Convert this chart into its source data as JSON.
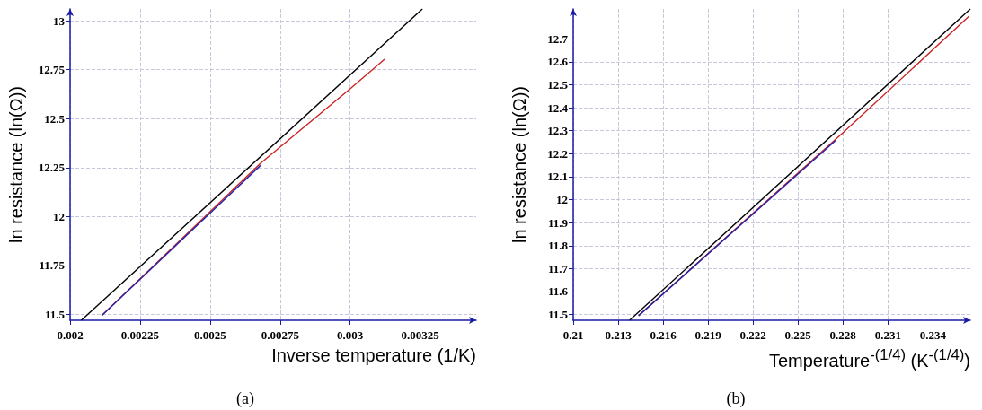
{
  "chart_data": [
    {
      "type": "line",
      "xlabel": "Inverse temperature (1/K)",
      "ylabel": "ln resistance (ln(Ω))",
      "annotations": [
        "(a)"
      ],
      "xlim": [
        0.002,
        0.00345
      ],
      "xticks": [
        0.002,
        0.00225,
        0.0025,
        0.00275,
        0.003,
        0.00325
      ],
      "ylim": [
        11.47,
        13.06
      ],
      "yticks": [
        11.5,
        11.75,
        12,
        12.25,
        12.5,
        12.75,
        13
      ],
      "grid": true,
      "marker": "none",
      "line_style": "solid",
      "series": [
        {
          "color": "#000000",
          "x": [
            0.00204,
            0.003258
          ],
          "values": [
            11.47,
            13.06
          ]
        },
        {
          "color": "#cc2222",
          "x": [
            0.002113,
            0.00268,
            0.003,
            0.003123
          ],
          "values": [
            11.494,
            12.272,
            12.652,
            12.803
          ]
        },
        {
          "color": "#2222aa",
          "x": [
            0.002113,
            0.00268
          ],
          "values": [
            11.494,
            12.261
          ]
        }
      ]
    },
    {
      "type": "line",
      "xlabel": "Temperature$^{-(1/4)}$ (K$^{-(1/4)}$)",
      "ylabel": "ln resistance (ln(Ω))",
      "annotations": [
        "(b)"
      ],
      "xlim": [
        0.21,
        0.2365
      ],
      "xticks": [
        0.21,
        0.213,
        0.216,
        0.219,
        0.222,
        0.225,
        0.228,
        0.231,
        0.234
      ],
      "ylim": [
        11.475,
        12.83
      ],
      "yticks": [
        11.5,
        11.6,
        11.7,
        11.8,
        11.9,
        12,
        12.1,
        12.2,
        12.3,
        12.4,
        12.5,
        12.6,
        12.7
      ],
      "grid": true,
      "marker": "none",
      "line_style": "solid",
      "series": [
        {
          "color": "#000000",
          "x": [
            0.21376,
            0.2365
          ],
          "values": [
            11.475,
            12.83
          ]
        },
        {
          "color": "#cc2222",
          "x": [
            0.21436,
            0.228,
            0.2364
          ],
          "values": [
            11.495,
            12.291,
            12.798
          ]
        },
        {
          "color": "#2222aa",
          "x": [
            0.21436,
            0.22752
          ],
          "values": [
            11.495,
            12.258
          ]
        }
      ]
    }
  ]
}
